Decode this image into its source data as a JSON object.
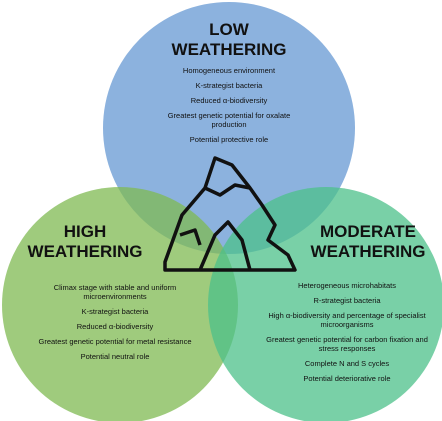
{
  "circles": [
    {
      "title": [
        "LOW",
        "WEATHERING"
      ],
      "items": [
        "Homogeneous environment",
        "K-strategist bacteria",
        "Reduced α-biodiversity",
        "Greatest genetic potential for oxalate production",
        "Potential protective role"
      ]
    },
    {
      "title": [
        "HIGH",
        "WEATHERING"
      ],
      "items": [
        "Climax stage with stable and uniform microenvironments",
        "K-strategist bacteria",
        "Reduced α-biodiversity",
        "Greatest genetic potential for metal resistance",
        "Potential neutral role"
      ]
    },
    {
      "title": [
        "MODERATE",
        "WEATHERING"
      ],
      "items": [
        "Heterogeneous microhabitats",
        "R-strategist bacteria",
        "High α-biodiversity and percentage of specialist microorganisms",
        "Greatest genetic potential for carbon fixation and stress responses",
        "Complete N and S cycles",
        "Potential deteriorative role"
      ]
    }
  ]
}
